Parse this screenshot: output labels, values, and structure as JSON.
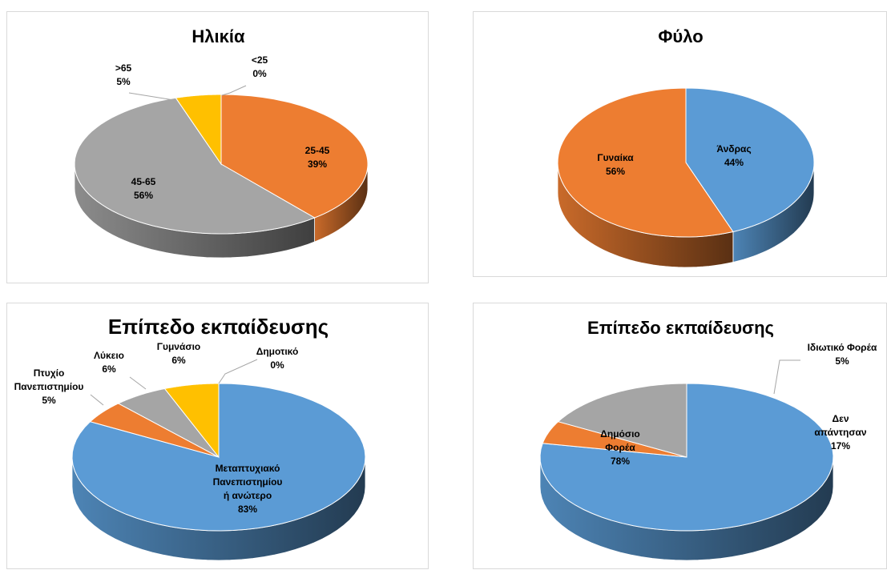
{
  "chart_data": [
    {
      "type": "pie",
      "title": "Ηλικία",
      "slices": [
        {
          "label": "25-45",
          "value": 39,
          "pct": "39%",
          "color": "#ED7D31"
        },
        {
          "label": "45-65",
          "value": 56,
          "pct": "56%",
          "color": "#A5A5A5"
        },
        {
          "label": ">65",
          "value": 5,
          "pct": "5%",
          "color": "#FFC000"
        },
        {
          "label": "<25",
          "value": 0,
          "pct": "0%",
          "color": "#5B9BD5"
        }
      ]
    },
    {
      "type": "pie",
      "title": "Φύλο",
      "slices": [
        {
          "label": "Άνδρας",
          "value": 44,
          "pct": "44%",
          "color": "#5B9BD5"
        },
        {
          "label": "Γυναίκα",
          "value": 56,
          "pct": "56%",
          "color": "#ED7D31"
        }
      ]
    },
    {
      "type": "pie",
      "title": "Επίπεδο εκπαίδευσης",
      "slices": [
        {
          "label": "Μεταπτυχιακό Πανεπιστημίου ή ανώτερο",
          "value": 83,
          "pct": "83%",
          "color": "#5B9BD5"
        },
        {
          "label": "Πτυχίο Πανεπιστημίου",
          "value": 5,
          "pct": "5%",
          "color": "#ED7D31"
        },
        {
          "label": "Λύκειο",
          "value": 6,
          "pct": "6%",
          "color": "#A5A5A5"
        },
        {
          "label": "Γυμνάσιο",
          "value": 6,
          "pct": "6%",
          "color": "#FFC000"
        },
        {
          "label": "Δημοτικό",
          "value": 0,
          "pct": "0%",
          "color": "#4472C4"
        }
      ]
    },
    {
      "type": "pie",
      "title": "Επίπεδο εκπαίδευσης",
      "slices": [
        {
          "label": "Δημόσιο Φορέα",
          "value": 78,
          "pct": "78%",
          "color": "#5B9BD5"
        },
        {
          "label": "Ιδιωτικό Φορέα",
          "value": 5,
          "pct": "5%",
          "color": "#ED7D31"
        },
        {
          "label": "Δεν απάντησαν",
          "value": 17,
          "pct": "17%",
          "color": "#A5A5A5"
        }
      ]
    }
  ]
}
